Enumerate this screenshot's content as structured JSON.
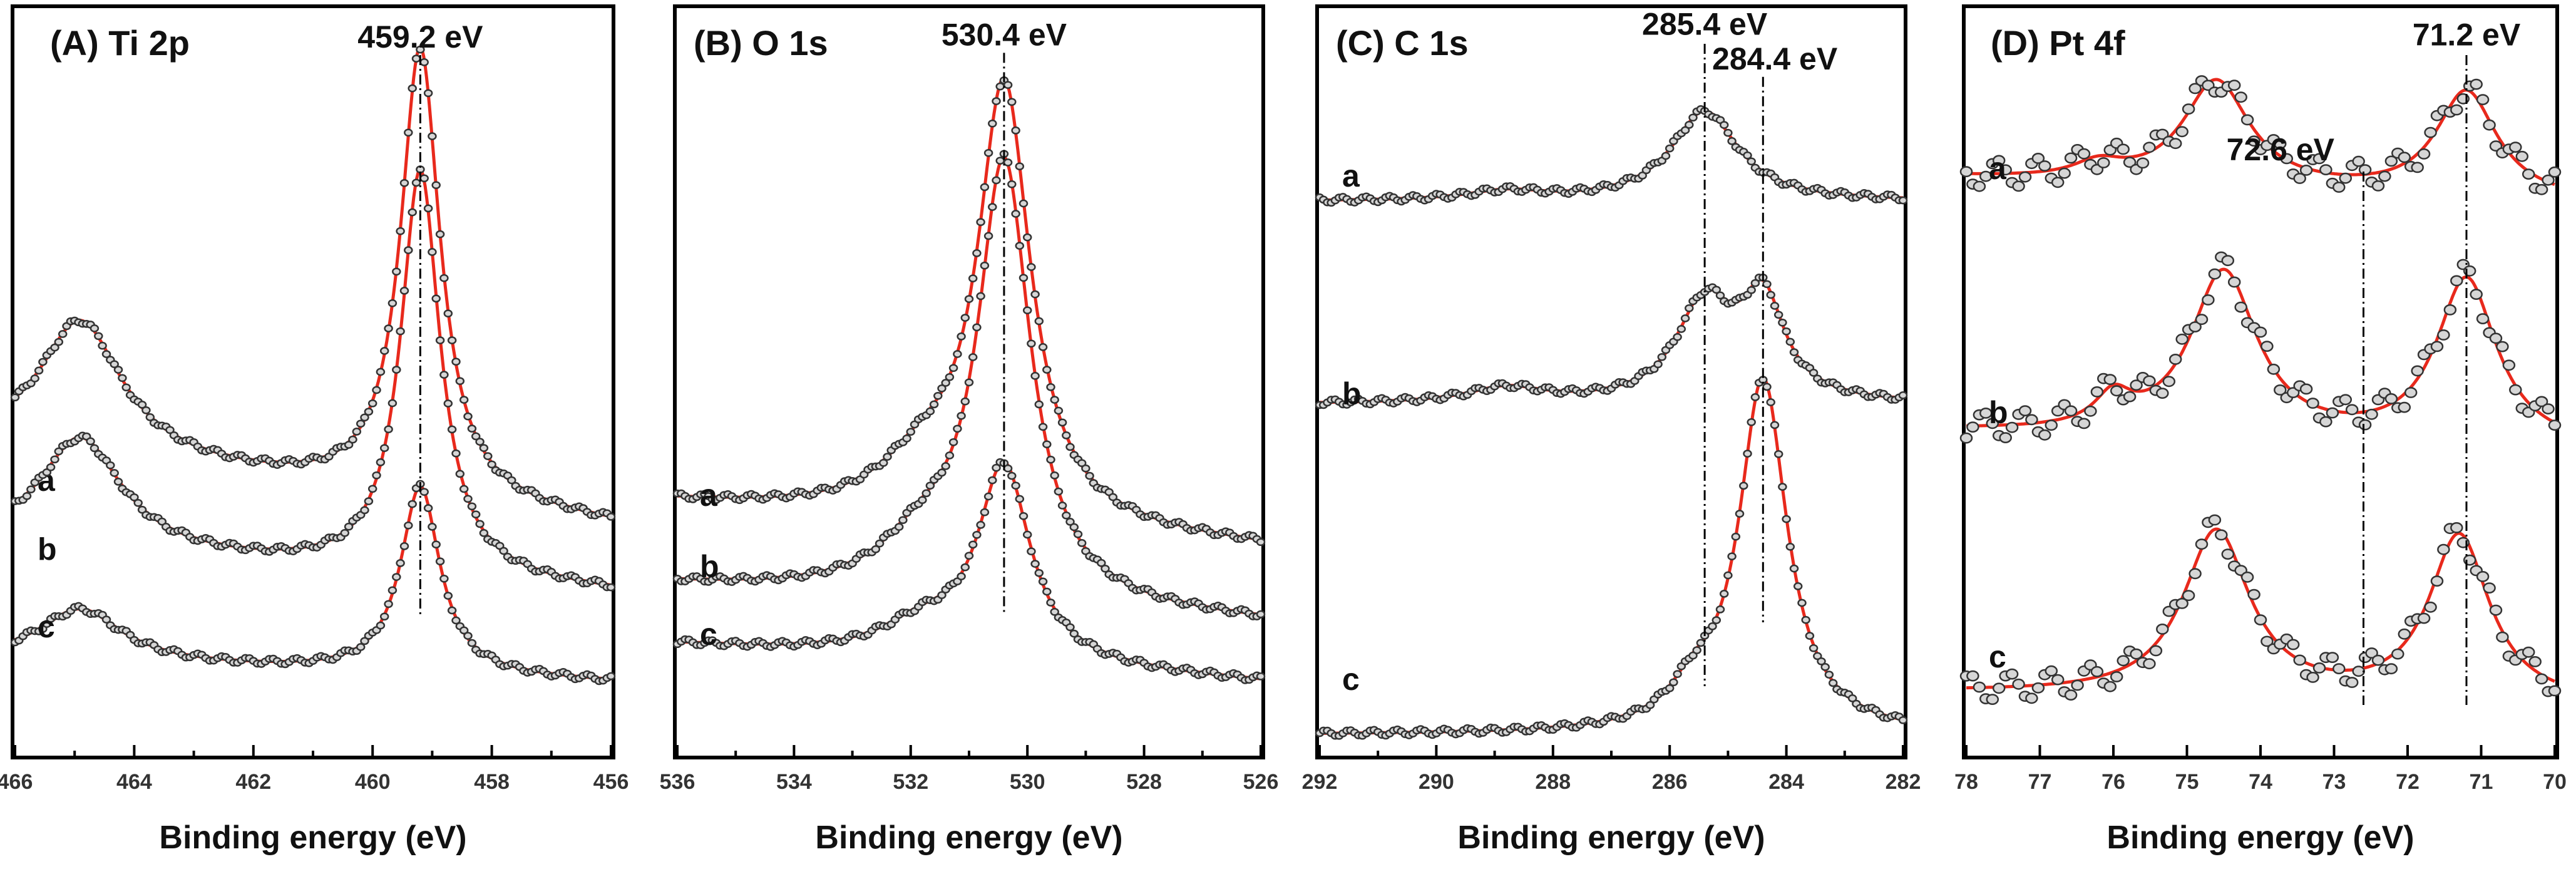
{
  "chart_data": [
    {
      "type": "line",
      "panel": "A",
      "title": "(A)  Ti 2p",
      "xlabel": "Binding energy (eV)",
      "xlim": [
        466,
        456
      ],
      "xticks": [
        466,
        464,
        462,
        460,
        458,
        456
      ],
      "minor_ticks": [
        465,
        463,
        461,
        459,
        457
      ],
      "ylim": [
        0,
        1
      ],
      "peaks": [
        {
          "label": "459.2 eV",
          "x": 459.2
        }
      ],
      "series": [
        {
          "name": "a",
          "baseline": 0.31,
          "bg_slope": 0.01,
          "components": [
            {
              "center": 464.9,
              "width": 0.85,
              "height": 0.18
            },
            {
              "center": 459.2,
              "width": 0.4,
              "height": 0.6
            }
          ]
        },
        {
          "name": "b",
          "baseline": 0.22,
          "bg_slope": 0.006,
          "components": [
            {
              "center": 464.9,
              "width": 0.85,
              "height": 0.15
            },
            {
              "center": 459.2,
              "width": 0.4,
              "height": 0.54
            }
          ]
        },
        {
          "name": "c",
          "baseline": 0.1,
          "bg_slope": 0.003,
          "components": [
            {
              "center": 464.9,
              "width": 0.85,
              "height": 0.07
            },
            {
              "center": 459.2,
              "width": 0.4,
              "height": 0.25
            }
          ]
        }
      ]
    },
    {
      "type": "line",
      "panel": "B",
      "title": "(B)  O 1s",
      "xlabel": "Binding energy (eV)",
      "xlim": [
        536,
        526
      ],
      "xticks": [
        536,
        534,
        532,
        530,
        528,
        526
      ],
      "minor_ticks": [
        535,
        533,
        531,
        529,
        527
      ],
      "ylim": [
        0,
        1
      ],
      "peaks": [
        {
          "label": "530.4 eV",
          "x": 530.4
        }
      ],
      "series": [
        {
          "name": "a",
          "baseline": 0.28,
          "bg_slope": 0.006,
          "components": [
            {
              "center": 530.4,
              "width": 0.55,
              "height": 0.58
            },
            {
              "center": 531.8,
              "width": 0.9,
              "height": 0.06
            }
          ]
        },
        {
          "name": "b",
          "baseline": 0.18,
          "bg_slope": 0.005,
          "components": [
            {
              "center": 530.4,
              "width": 0.55,
              "height": 0.58
            },
            {
              "center": 531.8,
              "width": 0.9,
              "height": 0.06
            }
          ]
        },
        {
          "name": "c",
          "baseline": 0.1,
          "bg_slope": 0.005,
          "components": [
            {
              "center": 530.4,
              "width": 0.55,
              "height": 0.26
            },
            {
              "center": 531.8,
              "width": 0.9,
              "height": 0.04
            }
          ]
        }
      ]
    },
    {
      "type": "line",
      "panel": "C",
      "title": "(C)  C 1s",
      "xlabel": "Binding energy (eV)",
      "xlim": [
        292,
        282
      ],
      "xticks": [
        292,
        290,
        288,
        286,
        284,
        282
      ],
      "minor_ticks": [
        291,
        289,
        287,
        285,
        283
      ],
      "ylim": [
        0,
        1
      ],
      "peaks": [
        {
          "label": "285.4 eV",
          "x": 285.4
        },
        {
          "label": "284.4 eV",
          "x": 284.4
        }
      ],
      "series": [
        {
          "name": "a",
          "baseline": 0.74,
          "bg_slope": 0.0,
          "components": [
            {
              "center": 285.4,
              "width": 0.7,
              "height": 0.12
            },
            {
              "center": 288.8,
              "width": 0.8,
              "height": 0.012
            }
          ]
        },
        {
          "name": "b",
          "baseline": 0.47,
          "bg_slope": 0.0,
          "components": [
            {
              "center": 285.4,
              "width": 0.6,
              "height": 0.13
            },
            {
              "center": 284.4,
              "width": 0.45,
              "height": 0.13
            },
            {
              "center": 288.8,
              "width": 0.8,
              "height": 0.02
            }
          ]
        },
        {
          "name": "c",
          "baseline": 0.03,
          "bg_slope": 0.0,
          "components": [
            {
              "center": 284.4,
              "width": 0.5,
              "height": 0.47
            },
            {
              "center": 285.6,
              "width": 0.5,
              "height": 0.04
            }
          ]
        }
      ]
    },
    {
      "type": "line",
      "panel": "D",
      "title": "(D) Pt 4f",
      "xlabel": "Binding energy (eV)",
      "xlim": [
        78,
        70
      ],
      "xticks": [
        78,
        77,
        76,
        75,
        74,
        73,
        72,
        71,
        70
      ],
      "minor_ticks": [],
      "ylim": [
        0,
        1
      ],
      "peaks": [
        {
          "label": "71.2 eV",
          "x": 71.2
        },
        {
          "label": "72.6 eV",
          "x": 72.6
        }
      ],
      "series": [
        {
          "name": "a",
          "baseline": 0.74,
          "bg_slope": 0.004,
          "components": [
            {
              "center": 74.6,
              "width": 0.55,
              "height": 0.14
            },
            {
              "center": 71.2,
              "width": 0.5,
              "height": 0.14
            },
            {
              "center": 76.2,
              "width": 0.4,
              "height": 0.02
            }
          ]
        },
        {
          "name": "b",
          "baseline": 0.41,
          "bg_slope": 0.003,
          "components": [
            {
              "center": 74.5,
              "width": 0.55,
              "height": 0.22
            },
            {
              "center": 71.2,
              "width": 0.5,
              "height": 0.22
            },
            {
              "center": 76.0,
              "width": 0.3,
              "height": 0.04
            }
          ]
        },
        {
          "name": "c",
          "baseline": 0.07,
          "bg_slope": 0.002,
          "components": [
            {
              "center": 74.6,
              "width": 0.55,
              "height": 0.22
            },
            {
              "center": 71.3,
              "width": 0.5,
              "height": 0.22
            }
          ]
        }
      ]
    }
  ]
}
